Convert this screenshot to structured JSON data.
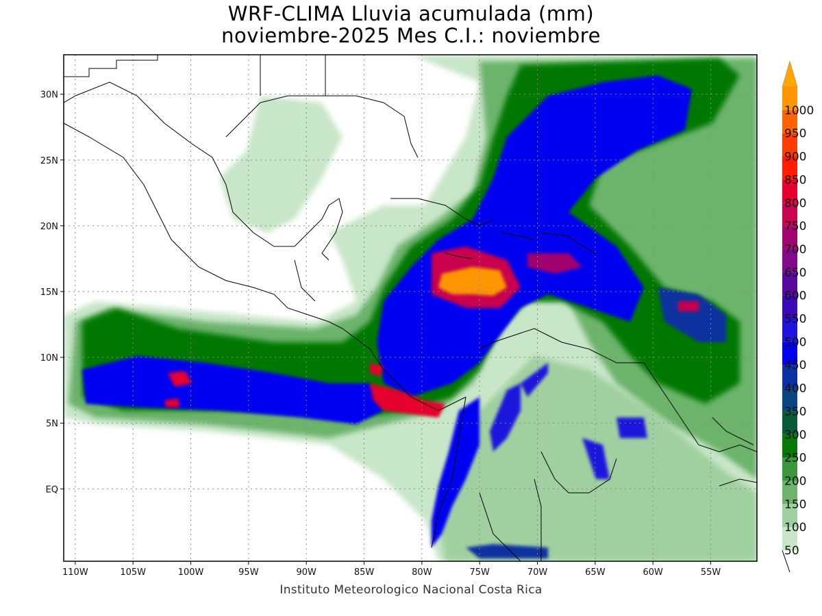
{
  "title": {
    "line1": "WRF-CLIMA Lluvia acumulada (mm)",
    "line2": "noviembre-2025 Mes C.I.: noviembre"
  },
  "credit": "Instituto Meteorologico Nacional Costa Rica",
  "map": {
    "lon_range": [
      -111,
      -51
    ],
    "lat_range": [
      -5.5,
      33
    ],
    "lon_ticks": [
      {
        "value": -110,
        "label": "110W"
      },
      {
        "value": -105,
        "label": "105W"
      },
      {
        "value": -100,
        "label": "100W"
      },
      {
        "value": -95,
        "label": "95W"
      },
      {
        "value": -90,
        "label": "90W"
      },
      {
        "value": -85,
        "label": "85W"
      },
      {
        "value": -80,
        "label": "80W"
      },
      {
        "value": -75,
        "label": "75W"
      },
      {
        "value": -70,
        "label": "70W"
      },
      {
        "value": -65,
        "label": "65W"
      },
      {
        "value": -60,
        "label": "60W"
      },
      {
        "value": -55,
        "label": "55W"
      }
    ],
    "lat_ticks": [
      {
        "value": 30,
        "label": "30N"
      },
      {
        "value": 25,
        "label": "25N"
      },
      {
        "value": 20,
        "label": "20N"
      },
      {
        "value": 15,
        "label": "15N"
      },
      {
        "value": 10,
        "label": "10N"
      },
      {
        "value": 5,
        "label": "5N"
      },
      {
        "value": 0,
        "label": "EQ"
      }
    ],
    "grid": "dotted"
  },
  "colorbar": {
    "levels": [
      {
        "value": 50,
        "label": "50",
        "color": "#c8e6c8"
      },
      {
        "value": 100,
        "label": "100",
        "color": "#a0d0a0"
      },
      {
        "value": 150,
        "label": "150",
        "color": "#6cb46c"
      },
      {
        "value": 200,
        "label": "200",
        "color": "#3c963c"
      },
      {
        "value": 250,
        "label": "250",
        "color": "#067806"
      },
      {
        "value": 300,
        "label": "300",
        "color": "#0c5a3c"
      },
      {
        "value": 350,
        "label": "350",
        "color": "#0a4682"
      },
      {
        "value": 400,
        "label": "400",
        "color": "#0a32a0"
      },
      {
        "value": 450,
        "label": "450",
        "color": "#0000f0"
      },
      {
        "value": 500,
        "label": "500",
        "color": "#1e14dc"
      },
      {
        "value": 550,
        "label": "550",
        "color": "#3c0ab4"
      },
      {
        "value": 600,
        "label": "600",
        "color": "#5a0a9a"
      },
      {
        "value": 650,
        "label": "650",
        "color": "#82088c"
      },
      {
        "value": 700,
        "label": "700",
        "color": "#a0066e"
      },
      {
        "value": 750,
        "label": "750",
        "color": "#c8044e"
      },
      {
        "value": 800,
        "label": "800",
        "color": "#e6002e"
      },
      {
        "value": 850,
        "label": "850",
        "color": "#ff1e00"
      },
      {
        "value": 900,
        "label": "900",
        "color": "#ff3c00"
      },
      {
        "value": 950,
        "label": "950",
        "color": "#ff6400"
      },
      {
        "value": 1000,
        "label": "1000",
        "color": "#ff9600"
      }
    ],
    "top_arrow_color": "#ffa500"
  }
}
